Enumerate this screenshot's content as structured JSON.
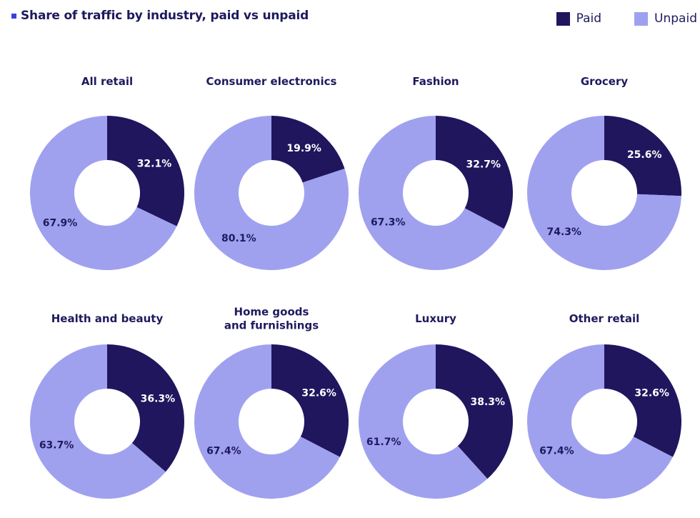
{
  "title": "Share of traffic by industry, paid vs unpaid",
  "legend": {
    "paid": "Paid",
    "unpaid": "Unpaid"
  },
  "colors": {
    "paid": "#1f165e",
    "unpaid": "#9fa1ef",
    "title_marker": "#3b3fe0"
  },
  "chart_data": [
    {
      "type": "pie",
      "title": "All retail",
      "categories": [
        "Paid",
        "Unpaid"
      ],
      "values": [
        32.1,
        67.9
      ],
      "labels": [
        "32.1%",
        "67.9%"
      ]
    },
    {
      "type": "pie",
      "title": "Consumer electronics",
      "categories": [
        "Paid",
        "Unpaid"
      ],
      "values": [
        19.9,
        80.1
      ],
      "labels": [
        "19.9%",
        "80.1%"
      ]
    },
    {
      "type": "pie",
      "title": "Fashion",
      "categories": [
        "Paid",
        "Unpaid"
      ],
      "values": [
        32.7,
        67.3
      ],
      "labels": [
        "32.7%",
        "67.3%"
      ]
    },
    {
      "type": "pie",
      "title": "Grocery",
      "categories": [
        "Paid",
        "Unpaid"
      ],
      "values": [
        25.6,
        74.3
      ],
      "labels": [
        "25.6%",
        "74.3%"
      ]
    },
    {
      "type": "pie",
      "title": "Health and beauty",
      "categories": [
        "Paid",
        "Unpaid"
      ],
      "values": [
        36.3,
        63.7
      ],
      "labels": [
        "36.3%",
        "63.7%"
      ]
    },
    {
      "type": "pie",
      "title": "Home goods\nand furnishings",
      "categories": [
        "Paid",
        "Unpaid"
      ],
      "values": [
        32.6,
        67.4
      ],
      "labels": [
        "32.6%",
        "67.4%"
      ]
    },
    {
      "type": "pie",
      "title": "Luxury",
      "categories": [
        "Paid",
        "Unpaid"
      ],
      "values": [
        38.3,
        61.7
      ],
      "labels": [
        "38.3%",
        "61.7%"
      ]
    },
    {
      "type": "pie",
      "title": "Other retail",
      "categories": [
        "Paid",
        "Unpaid"
      ],
      "values": [
        32.6,
        67.4
      ],
      "labels": [
        "32.6%",
        "67.4%"
      ]
    }
  ]
}
